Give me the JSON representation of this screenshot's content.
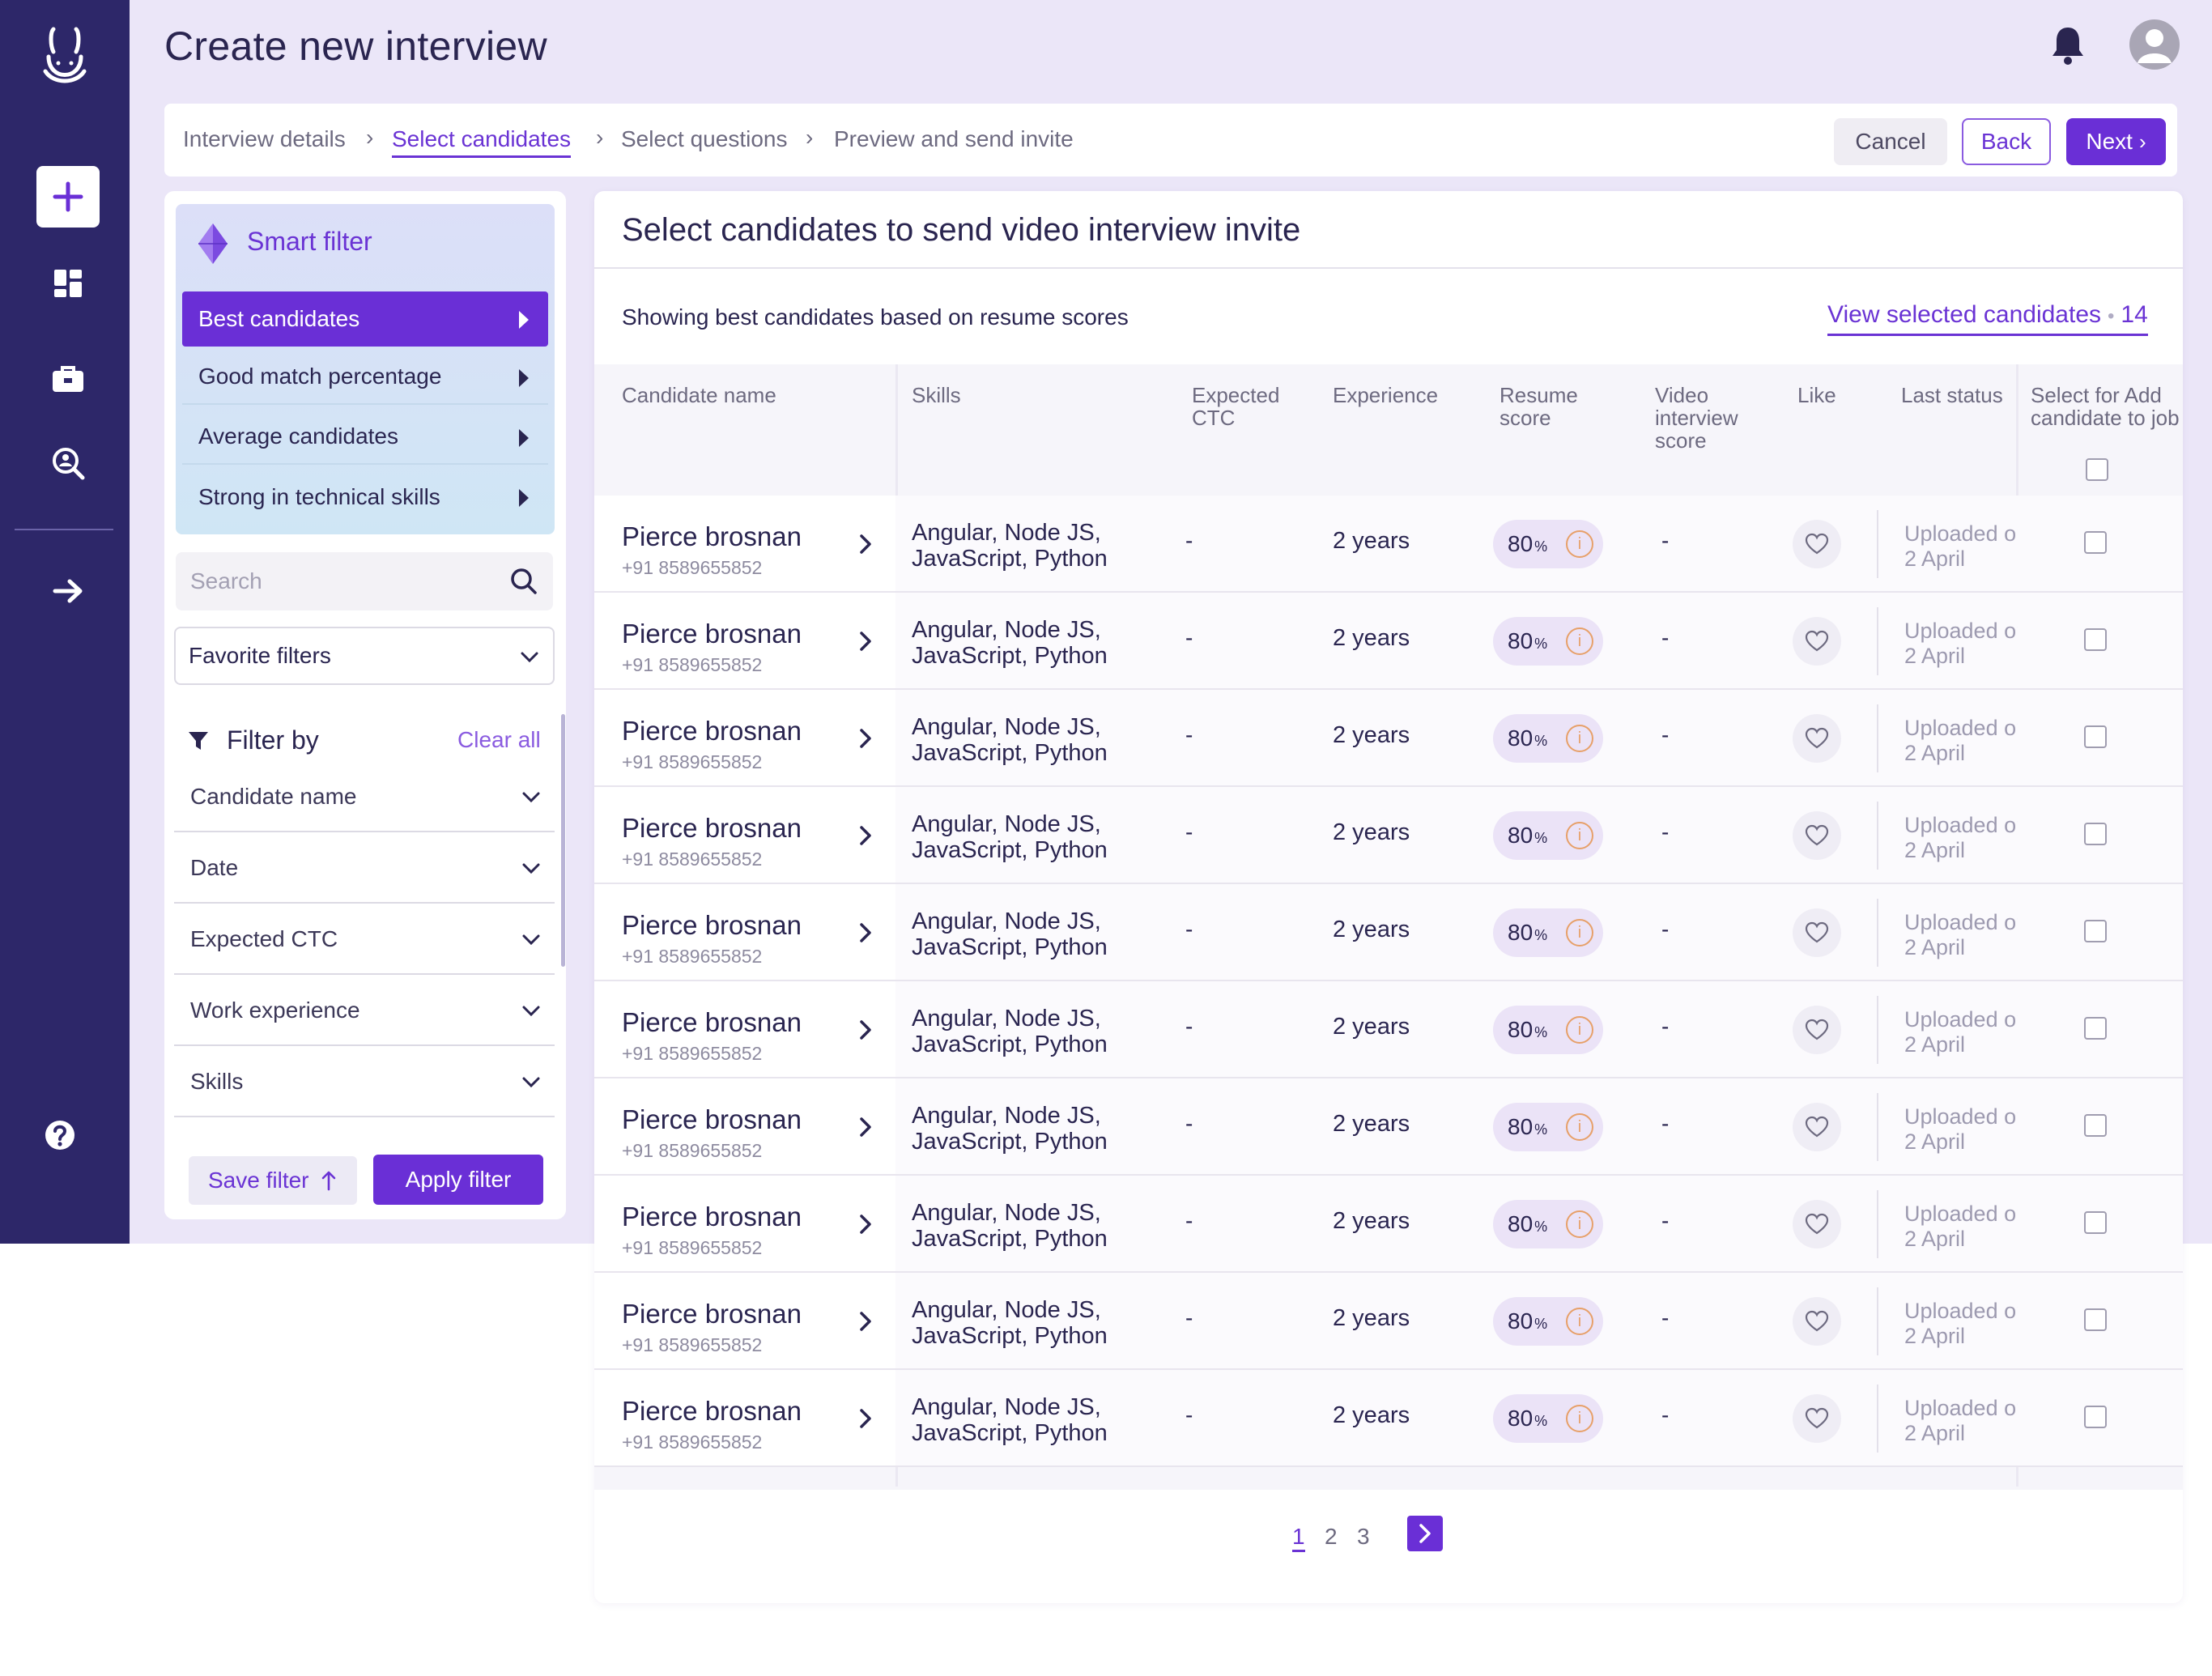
{
  "header": {
    "title": "Create new interview"
  },
  "stepper": {
    "steps": [
      {
        "label": "Interview details"
      },
      {
        "label": "Select candidates"
      },
      {
        "label": "Select questions"
      },
      {
        "label": "Preview and send invite"
      }
    ],
    "active_step": "Select candidates",
    "cancel_label": "Cancel",
    "back_label": "Back",
    "next_label": "Next"
  },
  "smart_filter": {
    "title": "Smart filter",
    "items": [
      {
        "label": "Best candidates",
        "active": true
      },
      {
        "label": "Good match percentage"
      },
      {
        "label": "Average candidates"
      },
      {
        "label": "Strong in technical skills"
      }
    ]
  },
  "search": {
    "placeholder": "Search"
  },
  "favorite_filters": {
    "label": "Favorite filters"
  },
  "filter_by": {
    "title": "Filter by",
    "clear_label": "Clear all",
    "rows": [
      {
        "label": "Candidate name"
      },
      {
        "label": "Date"
      },
      {
        "label": "Expected CTC"
      },
      {
        "label": "Work experience"
      },
      {
        "label": "Skills"
      }
    ],
    "save_label": "Save filter",
    "apply_label": "Apply filter"
  },
  "main": {
    "title": "Select candidates to send video interview  invite",
    "subtitle": "Showing best candidates based on resume scores",
    "view_selected_label": "View selected candidates",
    "view_selected_count": "14"
  },
  "table": {
    "headers": {
      "name": "Candidate name",
      "skills": "Skills",
      "ctc": "Expected CTC",
      "experience": "Experience",
      "resume_score": "Resume score",
      "video_score": "Video interview score",
      "like": "Like",
      "last_status": "Last status",
      "select": "Select for Add candidate to job"
    },
    "rows": [
      {
        "name": "Pierce brosnan",
        "phone": "+91 8589655852",
        "skills_1": "Angular, Node JS,",
        "skills_2": "JavaScript, Python",
        "ctc": "-",
        "experience": "2 years",
        "score": "80",
        "score_unit": "%",
        "info": "i",
        "video_score": "-",
        "status_1": "Uploaded on",
        "status_2": "2 April"
      },
      {
        "name": "Pierce brosnan",
        "phone": "+91 8589655852",
        "skills_1": "Angular, Node JS,",
        "skills_2": "JavaScript, Python",
        "ctc": "-",
        "experience": "2 years",
        "score": "80",
        "score_unit": "%",
        "info": "i",
        "video_score": "-",
        "status_1": "Uploaded on",
        "status_2": "2 April"
      },
      {
        "name": "Pierce brosnan",
        "phone": "+91 8589655852",
        "skills_1": "Angular, Node JS,",
        "skills_2": "JavaScript, Python",
        "ctc": "-",
        "experience": "2 years",
        "score": "80",
        "score_unit": "%",
        "info": "i",
        "video_score": "-",
        "status_1": "Uploaded on",
        "status_2": "2 April"
      },
      {
        "name": "Pierce brosnan",
        "phone": "+91 8589655852",
        "skills_1": "Angular, Node JS,",
        "skills_2": "JavaScript, Python",
        "ctc": "-",
        "experience": "2 years",
        "score": "80",
        "score_unit": "%",
        "info": "i",
        "video_score": "-",
        "status_1": "Uploaded on",
        "status_2": "2 April"
      },
      {
        "name": "Pierce brosnan",
        "phone": "+91 8589655852",
        "skills_1": "Angular, Node JS,",
        "skills_2": "JavaScript, Python",
        "ctc": "-",
        "experience": "2 years",
        "score": "80",
        "score_unit": "%",
        "info": "i",
        "video_score": "-",
        "status_1": "Uploaded on",
        "status_2": "2 April"
      },
      {
        "name": "Pierce brosnan",
        "phone": "+91 8589655852",
        "skills_1": "Angular, Node JS,",
        "skills_2": "JavaScript, Python",
        "ctc": "-",
        "experience": "2 years",
        "score": "80",
        "score_unit": "%",
        "info": "i",
        "video_score": "-",
        "status_1": "Uploaded on",
        "status_2": "2 April"
      },
      {
        "name": "Pierce brosnan",
        "phone": "+91 8589655852",
        "skills_1": "Angular, Node JS,",
        "skills_2": "JavaScript, Python",
        "ctc": "-",
        "experience": "2 years",
        "score": "80",
        "score_unit": "%",
        "info": "i",
        "video_score": "-",
        "status_1": "Uploaded on",
        "status_2": "2 April"
      },
      {
        "name": "Pierce brosnan",
        "phone": "+91 8589655852",
        "skills_1": "Angular, Node JS,",
        "skills_2": "JavaScript, Python",
        "ctc": "-",
        "experience": "2 years",
        "score": "80",
        "score_unit": "%",
        "info": "i",
        "video_score": "-",
        "status_1": "Uploaded on",
        "status_2": "2 April"
      },
      {
        "name": "Pierce brosnan",
        "phone": "+91 8589655852",
        "skills_1": "Angular, Node JS,",
        "skills_2": "JavaScript, Python",
        "ctc": "-",
        "experience": "2 years",
        "score": "80",
        "score_unit": "%",
        "info": "i",
        "video_score": "-",
        "status_1": "Uploaded on",
        "status_2": "2 April"
      },
      {
        "name": "Pierce brosnan",
        "phone": "+91 8589655852",
        "skills_1": "Angular, Node JS,",
        "skills_2": "JavaScript, Python",
        "ctc": "-",
        "experience": "2 years",
        "score": "80",
        "score_unit": "%",
        "info": "i",
        "video_score": "-",
        "status_1": "Uploaded on",
        "status_2": "2 April"
      }
    ]
  },
  "pagination": {
    "pages": [
      "1",
      "2",
      "3"
    ],
    "current": "1"
  },
  "icons": {
    "logo": "bunny-logo-icon",
    "sidebar": [
      "plus-icon",
      "dashboard-icon",
      "briefcase-icon",
      "search-person-icon",
      "arrow-right-icon",
      "help-icon"
    ]
  },
  "colors": {
    "sidebar_bg": "#2d2769",
    "accent": "#6a2fd6",
    "header_bg": "#ebe6f8"
  }
}
